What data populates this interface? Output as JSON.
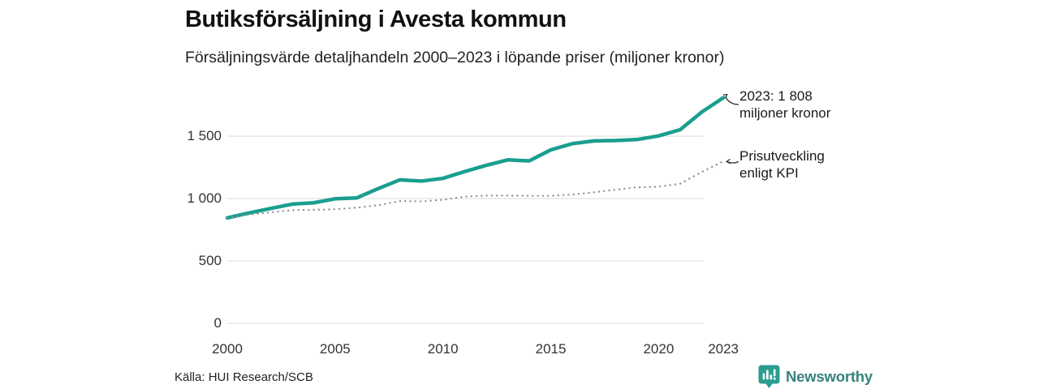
{
  "header": {
    "title": "Butiksförsäljning i Avesta kommun",
    "subtitle": "Försäljningsvärde detaljhandeln 2000–2023 i löpande priser (miljoner kronor)"
  },
  "chart_data": {
    "type": "line",
    "title": "Butiksförsäljning i Avesta kommun",
    "subtitle": "Försäljningsvärde detaljhandeln 2000–2023 i löpande priser (miljoner kronor)",
    "x": [
      2000,
      2001,
      2002,
      2003,
      2004,
      2005,
      2006,
      2007,
      2008,
      2009,
      2010,
      2011,
      2012,
      2013,
      2014,
      2015,
      2016,
      2017,
      2018,
      2019,
      2020,
      2021,
      2022,
      2023
    ],
    "series": [
      {
        "name": "Försäljningsvärde i löpande priser",
        "style": "solid",
        "color": "#1a9e8f",
        "values": [
          845,
          884,
          920,
          955,
          966,
          998,
          1005,
          1080,
          1150,
          1140,
          1162,
          1216,
          1266,
          1310,
          1302,
          1390,
          1440,
          1462,
          1465,
          1473,
          1502,
          1552,
          1693,
          1808
        ]
      },
      {
        "name": "Prisutveckling enligt KPI",
        "style": "dotted",
        "color": "#8f8f8f",
        "values": [
          845,
          871,
          889,
          907,
          910,
          914,
          927,
          947,
          980,
          977,
          990,
          1015,
          1024,
          1024,
          1022,
          1022,
          1032,
          1050,
          1071,
          1090,
          1095,
          1119,
          1213,
          1298
        ]
      }
    ],
    "y_ticks": [
      0,
      500,
      1000,
      1500
    ],
    "y_tick_labels": [
      "0",
      "500",
      "1 000",
      "1 500"
    ],
    "x_tick_years": [
      2000,
      2005,
      2010,
      2015,
      2020,
      2023
    ],
    "ylim": [
      0,
      1900
    ],
    "xlim": [
      2000,
      2023
    ],
    "grid": "horizontal-only",
    "gridline_color": "#e2e2e2",
    "legend_position": "none",
    "annotations": [
      {
        "id": "sales-2023",
        "line1": "2023: 1 808",
        "line2": "miljoner kronor",
        "points_to": "end of solid sales line"
      },
      {
        "id": "kpi",
        "line1": "Prisutveckling",
        "line2": "enligt KPI",
        "points_to": "end of dotted KPI line"
      }
    ]
  },
  "footer": {
    "source": "Källa: HUI Research/SCB",
    "brand": "Newsworthy"
  },
  "colors": {
    "accent_teal": "#1a9e8f",
    "kpi_gray": "#8f8f8f",
    "grid_gray": "#e2e2e2",
    "brand_teal": "#35837c"
  }
}
